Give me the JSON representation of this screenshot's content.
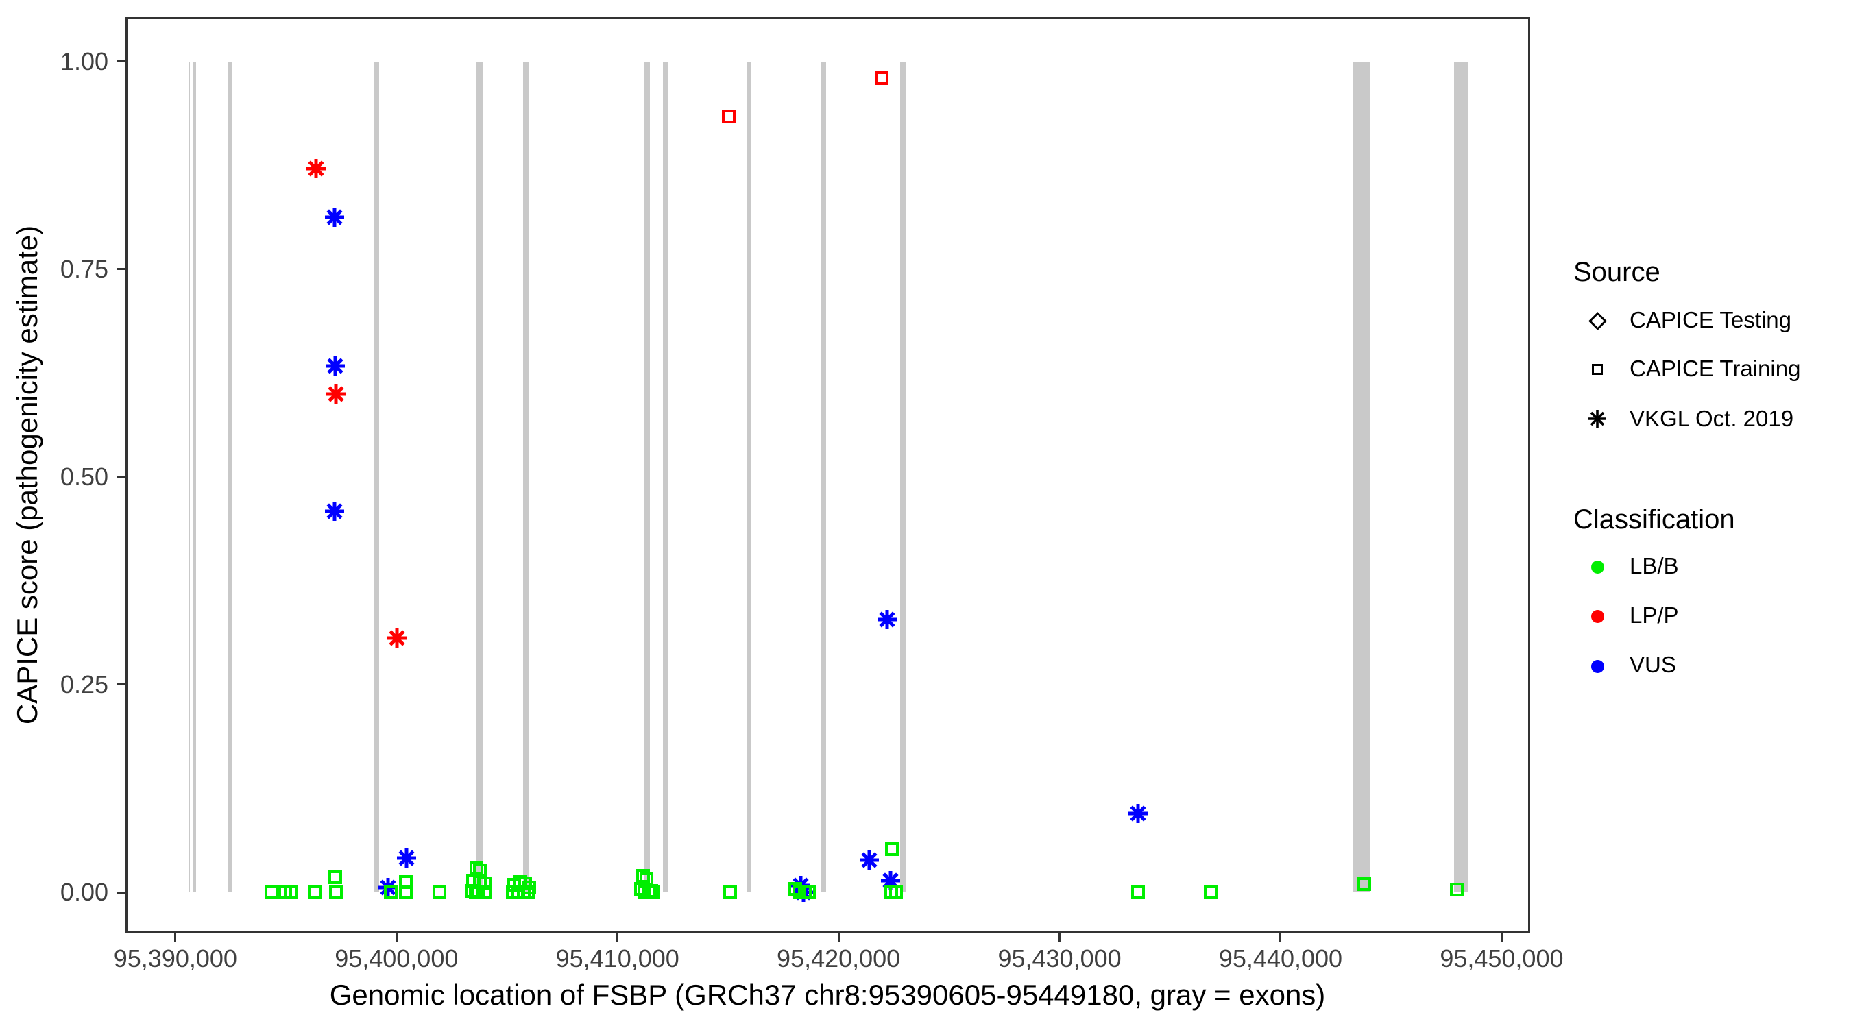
{
  "chart_data": {
    "type": "scatter",
    "title": "",
    "xlabel": "Genomic location of FSBP (GRCh37 chr8:95390605-95449180, gray = exons)",
    "ylabel": "CAPICE score (pathogenicity estimate)",
    "xlim": [
      95387740,
      95451290
    ],
    "ylim": [
      -0.0495,
      1.0536
    ],
    "grid": "off",
    "x_ticks": [
      {
        "value": 95390000,
        "label": "95,390,000"
      },
      {
        "value": 95400000,
        "label": "95,400,000"
      },
      {
        "value": 95410000,
        "label": "95,410,000"
      },
      {
        "value": 95420000,
        "label": "95,420,000"
      },
      {
        "value": 95430000,
        "label": "95,430,000"
      },
      {
        "value": 95440000,
        "label": "95,440,000"
      },
      {
        "value": 95450000,
        "label": "95,450,000"
      }
    ],
    "y_ticks": [
      {
        "value": 0.0,
        "label": "0.00"
      },
      {
        "value": 0.25,
        "label": "0.25"
      },
      {
        "value": 0.5,
        "label": "0.50"
      },
      {
        "value": 0.75,
        "label": "0.75"
      },
      {
        "value": 1.0,
        "label": "1.00"
      }
    ],
    "exon_color": "#c9c9c9",
    "exons": [
      {
        "start": 95390605,
        "end": 95390670
      },
      {
        "start": 95390820,
        "end": 95390930
      },
      {
        "start": 95392370,
        "end": 95392575
      },
      {
        "start": 95398990,
        "end": 95399210
      },
      {
        "start": 95403600,
        "end": 95403900
      },
      {
        "start": 95405720,
        "end": 95405970
      },
      {
        "start": 95411210,
        "end": 95411460
      },
      {
        "start": 95412050,
        "end": 95412290
      },
      {
        "start": 95415830,
        "end": 95416050
      },
      {
        "start": 95419180,
        "end": 95419430
      },
      {
        "start": 95422780,
        "end": 95423020
      },
      {
        "start": 95443300,
        "end": 95444050
      },
      {
        "start": 95447860,
        "end": 95448480
      }
    ],
    "series": [
      {
        "name": "VKGL Oct. 2019 / LP/P",
        "source": "VKGL Oct. 2019",
        "classification": "LP/P",
        "marker": "asterisk",
        "color": "#FF0000",
        "points": [
          [
            95396360,
            0.871
          ],
          [
            95397260,
            0.6
          ],
          [
            95400020,
            0.306
          ]
        ]
      },
      {
        "name": "VKGL Oct. 2019 / VUS",
        "source": "VKGL Oct. 2019",
        "classification": "VUS",
        "marker": "asterisk",
        "color": "#0000FF",
        "points": [
          [
            95397190,
            0.813
          ],
          [
            95397220,
            0.634
          ],
          [
            95397190,
            0.459
          ],
          [
            95399610,
            0.006
          ],
          [
            95400450,
            0.041
          ],
          [
            95418280,
            0.008
          ],
          [
            95418400,
            0.0
          ],
          [
            95421380,
            0.039
          ],
          [
            95422340,
            0.014
          ],
          [
            95422190,
            0.328
          ],
          [
            95433540,
            0.095
          ]
        ]
      },
      {
        "name": "CAPICE Training / LP/P",
        "source": "CAPICE Training",
        "classification": "LP/P",
        "marker": "open-square",
        "color": "#FF0000",
        "points": [
          [
            95415020,
            0.934
          ],
          [
            95421940,
            0.98
          ]
        ]
      },
      {
        "name": "CAPICE Training / LB/B",
        "source": "CAPICE Training",
        "classification": "LB/B",
        "marker": "open-square",
        "color": "#00EE00",
        "points": [
          [
            95394340,
            0.0
          ],
          [
            95394960,
            0.0
          ],
          [
            95395210,
            0.0
          ],
          [
            95396300,
            0.0
          ],
          [
            95397230,
            0.018
          ],
          [
            95397260,
            0.0
          ],
          [
            95399740,
            0.0
          ],
          [
            95400420,
            0.012
          ],
          [
            95400420,
            0.0
          ],
          [
            95401940,
            0.0
          ],
          [
            95403610,
            0.03
          ],
          [
            95403770,
            0.026
          ],
          [
            95403460,
            0.014
          ],
          [
            95403770,
            0.012
          ],
          [
            95403990,
            0.011
          ],
          [
            95403400,
            0.002
          ],
          [
            95403710,
            0.0
          ],
          [
            95403990,
            0.0
          ],
          [
            95403580,
            0.0
          ],
          [
            95405570,
            0.012
          ],
          [
            95405810,
            0.011
          ],
          [
            95405320,
            0.009
          ],
          [
            95406000,
            0.006
          ],
          [
            95405260,
            0.0
          ],
          [
            95405500,
            0.0
          ],
          [
            95405750,
            0.0
          ],
          [
            95405940,
            0.0
          ],
          [
            95411150,
            0.02
          ],
          [
            95411300,
            0.016
          ],
          [
            95411050,
            0.004
          ],
          [
            95411210,
            0.0
          ],
          [
            95411400,
            0.0
          ],
          [
            95411520,
            0.002
          ],
          [
            95411580,
            0.0
          ],
          [
            95415090,
            0.0
          ],
          [
            95418030,
            0.004
          ],
          [
            95418220,
            0.0
          ],
          [
            95418470,
            0.0
          ],
          [
            95418650,
            0.0
          ],
          [
            95422430,
            0.052
          ],
          [
            95422370,
            0.0
          ],
          [
            95422590,
            0.0
          ],
          [
            95433540,
            0.0
          ],
          [
            95436830,
            0.0
          ],
          [
            95443770,
            0.01
          ],
          [
            95447980,
            0.003
          ]
        ]
      }
    ],
    "legend": {
      "position": "right",
      "source": {
        "title": "Source",
        "items": [
          {
            "label": "CAPICE Testing",
            "marker": "diamond"
          },
          {
            "label": "CAPICE Training",
            "marker": "open-square"
          },
          {
            "label": "VKGL Oct. 2019",
            "marker": "asterisk"
          }
        ]
      },
      "classification": {
        "title": "Classification",
        "items": [
          {
            "label": "LB/B",
            "color": "#00EE00"
          },
          {
            "label": "LP/P",
            "color": "#FF0000"
          },
          {
            "label": "VUS",
            "color": "#0000FF"
          }
        ]
      }
    }
  }
}
